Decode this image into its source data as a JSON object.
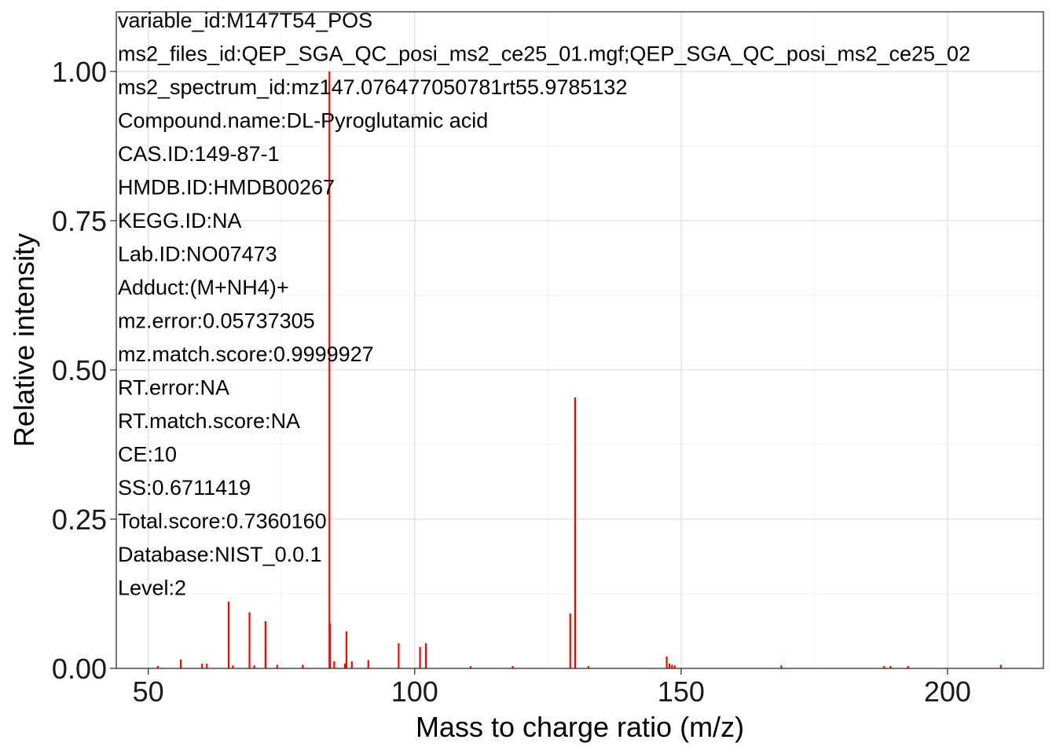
{
  "chart_data": {
    "type": "bar",
    "xlabel": "Mass to charge ratio (m/z)",
    "ylabel": "Relative intensity",
    "xlim": [
      44,
      218
    ],
    "ylim": [
      0,
      1.1
    ],
    "x_ticks": [
      50,
      100,
      150,
      200
    ],
    "x_tick_labels": [
      "50",
      "100",
      "150",
      "200"
    ],
    "y_ticks": [
      0,
      0.25,
      0.5,
      0.75,
      1.0
    ],
    "y_tick_labels": [
      "0.00",
      "0.25",
      "0.50",
      "0.75",
      "1.00"
    ],
    "grid": true,
    "bar_color": "#FF0000",
    "peaks": [
      {
        "mz": 51.8,
        "intensity": 0.004
      },
      {
        "mz": 56.1,
        "intensity": 0.015
      },
      {
        "mz": 60.1,
        "intensity": 0.008
      },
      {
        "mz": 61.0,
        "intensity": 0.008
      },
      {
        "mz": 65.1,
        "intensity": 0.112
      },
      {
        "mz": 65.9,
        "intensity": 0.005
      },
      {
        "mz": 69.0,
        "intensity": 0.094
      },
      {
        "mz": 69.9,
        "intensity": 0.005
      },
      {
        "mz": 72.0,
        "intensity": 0.079
      },
      {
        "mz": 74.2,
        "intensity": 0.006
      },
      {
        "mz": 79.0,
        "intensity": 0.006
      },
      {
        "mz": 84.0,
        "intensity": 1.0
      },
      {
        "mz": 84.1,
        "intensity": 0.075
      },
      {
        "mz": 84.9,
        "intensity": 0.012
      },
      {
        "mz": 86.9,
        "intensity": 0.008
      },
      {
        "mz": 87.2,
        "intensity": 0.062
      },
      {
        "mz": 88.2,
        "intensity": 0.012
      },
      {
        "mz": 91.3,
        "intensity": 0.014
      },
      {
        "mz": 97.0,
        "intensity": 0.042
      },
      {
        "mz": 101.0,
        "intensity": 0.036
      },
      {
        "mz": 102.1,
        "intensity": 0.042
      },
      {
        "mz": 110.5,
        "intensity": 0.004
      },
      {
        "mz": 118.4,
        "intensity": 0.004
      },
      {
        "mz": 129.2,
        "intensity": 0.092
      },
      {
        "mz": 130.1,
        "intensity": 0.454
      },
      {
        "mz": 132.6,
        "intensity": 0.004
      },
      {
        "mz": 147.3,
        "intensity": 0.02
      },
      {
        "mz": 147.8,
        "intensity": 0.008
      },
      {
        "mz": 148.3,
        "intensity": 0.006
      },
      {
        "mz": 148.8,
        "intensity": 0.005
      },
      {
        "mz": 168.8,
        "intensity": 0.005
      },
      {
        "mz": 188.1,
        "intensity": 0.004
      },
      {
        "mz": 189.3,
        "intensity": 0.004
      },
      {
        "mz": 192.6,
        "intensity": 0.004
      },
      {
        "mz": 210.0,
        "intensity": 0.006
      }
    ],
    "annotations": [
      "variable_id:M147T54_POS",
      "ms2_files_id:QEP_SGA_QC_posi_ms2_ce25_01.mgf;QEP_SGA_QC_posi_ms2_ce25_02",
      "ms2_spectrum_id:mz147.076477050781rt55.9785132",
      "Compound.name:DL-Pyroglutamic acid",
      "CAS.ID:149-87-1",
      "HMDB.ID:HMDB00267",
      "KEGG.ID:NA",
      "Lab.ID:NO07473",
      "Adduct:(M+NH4)+",
      "mz.error:0.05737305",
      "mz.match.score:0.9999927",
      "RT.error:NA",
      "RT.match.score:NA",
      "CE:10",
      "SS:0.6711419",
      "Total.score:0.7360160",
      "Database:NIST_0.0.1",
      "Level:2"
    ]
  }
}
